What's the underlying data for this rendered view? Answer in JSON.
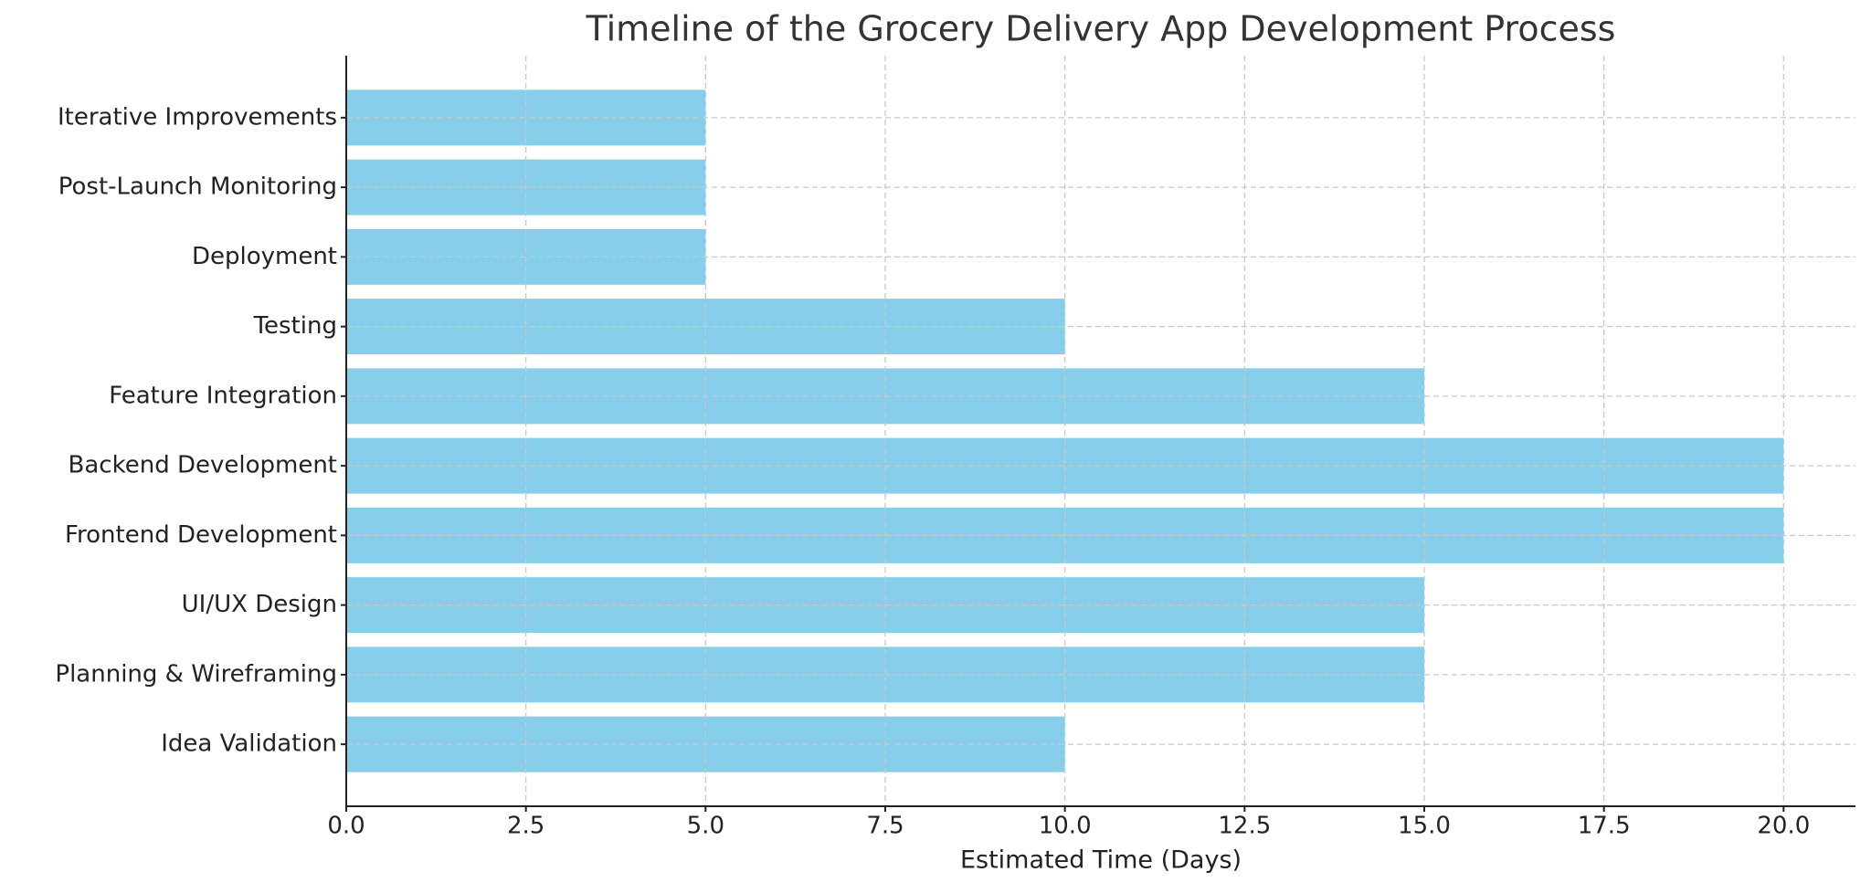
{
  "chart_data": {
    "type": "bar",
    "orientation": "horizontal",
    "title": "Timeline of the Grocery Delivery App Development Process",
    "xlabel": "Estimated Time (Days)",
    "categories": [
      "Idea Validation",
      "Planning & Wireframing",
      "UI/UX Design",
      "Frontend Development",
      "Backend Development",
      "Feature Integration",
      "Testing",
      "Deployment",
      "Post-Launch Monitoring",
      "Iterative Improvements"
    ],
    "values": [
      10,
      15,
      15,
      20,
      20,
      15,
      10,
      5,
      5,
      5
    ],
    "color": "#87ceeb",
    "xlim": [
      0,
      21
    ],
    "xticks": [
      {
        "value": 0,
        "label": "0.0"
      },
      2.5,
      {
        "value": 5,
        "label": "5.0"
      },
      7.5,
      {
        "value": 10,
        "label": "10.0"
      },
      12.5,
      {
        "value": 15,
        "label": "15.0"
      },
      17.5,
      {
        "value": 20,
        "label": "20.0"
      }
    ],
    "grid": true
  }
}
